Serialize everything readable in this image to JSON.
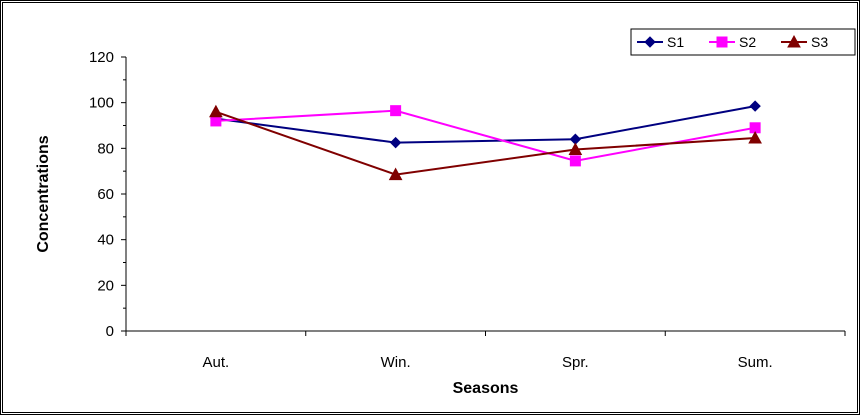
{
  "chart_data": {
    "type": "line",
    "title": "",
    "xlabel": "Seasons",
    "ylabel": "Concentrations",
    "categories": [
      "Aut.",
      "Win.",
      "Spr.",
      "Sum."
    ],
    "ylim": [
      0,
      120
    ],
    "yticks": [
      0,
      20,
      40,
      60,
      80,
      100,
      120
    ],
    "grid": false,
    "legend_position": "top-right",
    "series": [
      {
        "name": "S1",
        "color": "#000080",
        "marker": "diamond",
        "values": [
          93,
          82.5,
          84,
          98.5
        ]
      },
      {
        "name": "S2",
        "color": "#FF00FF",
        "marker": "square",
        "values": [
          92,
          96.5,
          74.5,
          89
        ]
      },
      {
        "name": "S3",
        "color": "#800000",
        "marker": "triangle",
        "values": [
          96,
          68.5,
          79.5,
          84.5
        ]
      }
    ]
  }
}
